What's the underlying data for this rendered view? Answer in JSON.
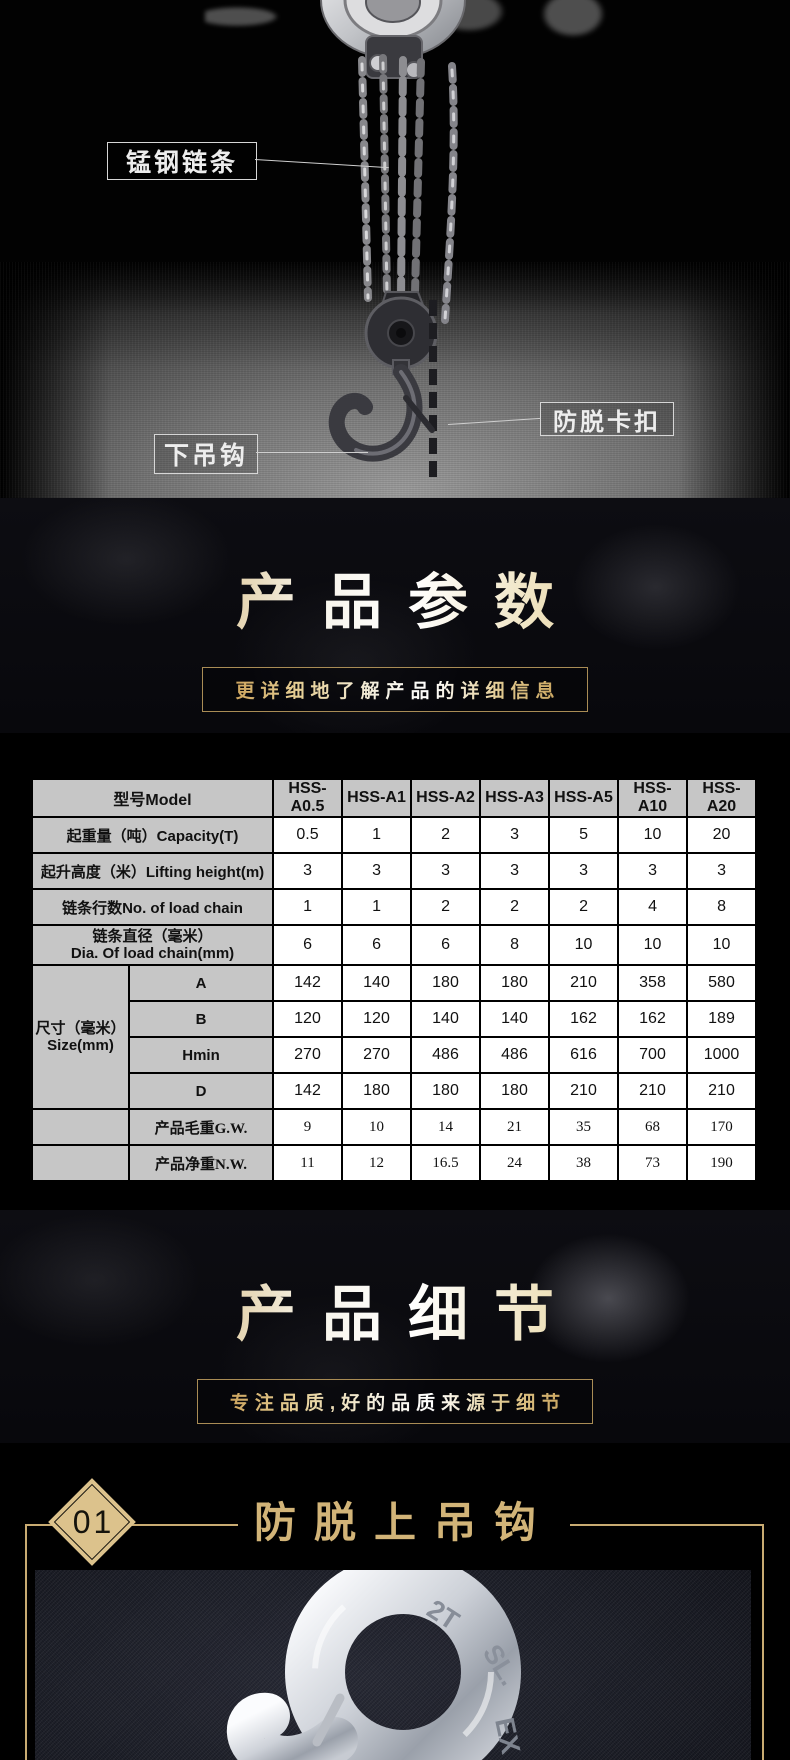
{
  "photo_section": {
    "labels": {
      "chain": "锰钢链条",
      "latch": "防脱卡扣",
      "lower_hook": "下吊钩"
    }
  },
  "params_section": {
    "title": "产品参数",
    "subtitle": "更详细地了解产品的详细信息"
  },
  "details_section": {
    "title": "产品细节",
    "subtitle": "专注品质,好的品质来源于细节"
  },
  "spec_table": {
    "model_header": {
      "label": "型号Model",
      "cells": [
        "HSS-A0.5",
        "HSS-A1",
        "HSS-A2",
        "HSS-A3",
        "HSS-A5",
        "HSS-A10",
        "HSS-A20"
      ]
    },
    "simple_rows": [
      {
        "label": "起重量（吨）Capacity(T)",
        "values": [
          "0.5",
          "1",
          "2",
          "3",
          "5",
          "10",
          "20"
        ]
      },
      {
        "label": "起升高度（米）Lifting height(m)",
        "values": [
          "3",
          "3",
          "3",
          "3",
          "3",
          "3",
          "3"
        ]
      },
      {
        "label": "链条行数No. of load chain",
        "values": [
          "1",
          "1",
          "2",
          "2",
          "2",
          "4",
          "8"
        ]
      }
    ],
    "dia_row": {
      "line1": "链条直径（毫米）",
      "line2": "Dia. Of load chain(mm)",
      "values": [
        "6",
        "6",
        "6",
        "8",
        "10",
        "10",
        "10"
      ]
    },
    "size_group": {
      "line1": "尺寸（毫米）",
      "line2": "Size(mm)",
      "sub_rows": [
        {
          "name": "A",
          "values": [
            "142",
            "140",
            "180",
            "180",
            "210",
            "358",
            "580"
          ]
        },
        {
          "name": "B",
          "values": [
            "120",
            "120",
            "140",
            "140",
            "162",
            "162",
            "189"
          ]
        },
        {
          "name": "Hmin",
          "values": [
            "270",
            "270",
            "486",
            "486",
            "616",
            "700",
            "1000"
          ]
        },
        {
          "name": "D",
          "values": [
            "142",
            "180",
            "180",
            "180",
            "210",
            "210",
            "210"
          ]
        }
      ]
    },
    "weight_rows": [
      {
        "name": "产品毛重G.W.",
        "values": [
          "9",
          "10",
          "14",
          "21",
          "35",
          "68",
          "170"
        ]
      },
      {
        "name": "产品净重N.W.",
        "values": [
          "11",
          "12",
          "16.5",
          "24",
          "38",
          "73",
          "190"
        ]
      }
    ]
  },
  "detail_item": {
    "number": "01",
    "title": "防脱上吊钩",
    "engraving_1": "2T",
    "engraving_2": "SL.",
    "engraving_3": "EX"
  },
  "colors": {
    "gold_line": "#c9ab72",
    "gold_text": "#d2b478",
    "table_gray": "#c6c6c6",
    "diamond_fill": "#dcc28c"
  }
}
